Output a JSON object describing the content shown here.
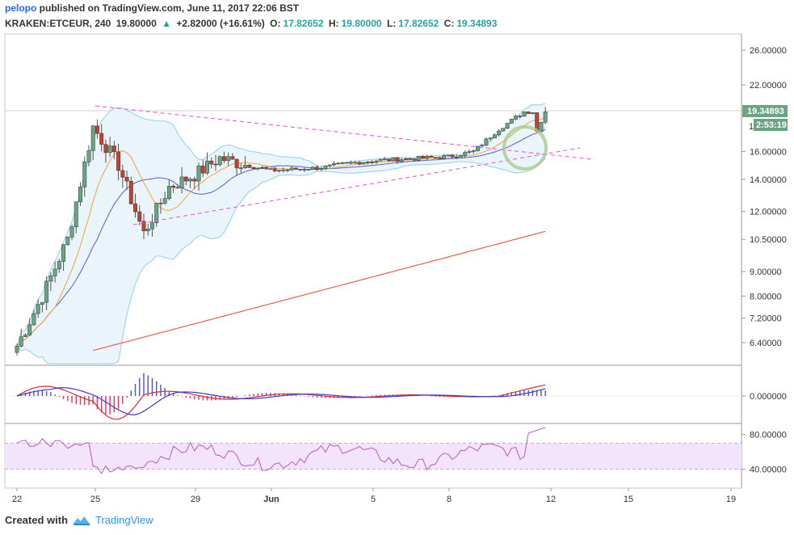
{
  "header": {
    "user": "pelopo",
    "published_text": "published on TradingView.com, June 11, 2017 22:06 BST",
    "symbol": "KRAKEN:ETCEUR, 240",
    "last": "19.80000",
    "change_arrow": "up-triangle-icon",
    "change": "+2.82000 (+16.61%)",
    "open_label": "O:",
    "open": "17.82652",
    "high_label": "H:",
    "high": "19.80000",
    "low_label": "L:",
    "low": "17.82652",
    "close_label": "C:",
    "close": "19.34893"
  },
  "price_badge": {
    "price": "19.34893",
    "countdown": "2:53:19",
    "partial_label": "1"
  },
  "footer": {
    "created_with": "Created with",
    "brand": "TradingView"
  },
  "colors": {
    "up_candle": "#6aa583",
    "down_candle": "#c4412c",
    "bollinger": "#8fd0ee",
    "bollinger_fill": "#e9f4fb",
    "ma_fast": "#f0a43a",
    "ma_mid": "#5b5bd6",
    "ma_slow": "#f25a4a",
    "trendline": "#e44ee0",
    "macd": "#e02c2c",
    "signal": "#3a3ad0",
    "rsi": "#b25fc4",
    "rsi_band": "#f3e3fb",
    "circle": "#a8cc8c"
  },
  "chart_data": [
    {
      "type": "candlestick",
      "title": "KRAKEN:ETCEUR, 240",
      "x_ticks": [
        "22",
        "25",
        "29",
        "Jun",
        "5",
        "8",
        "12",
        "15",
        "19"
      ],
      "y_ticks": [
        "26.00000",
        "22.00000",
        "16.00000",
        "14.00000",
        "12.00000",
        "10.50000",
        "9.00000",
        "8.00000",
        "7.20000",
        "6.40000"
      ],
      "y_scale": "log",
      "approx_close_path": [
        [
          "22",
          6.3
        ],
        [
          "23",
          8.0
        ],
        [
          "24",
          10.5
        ],
        [
          "25",
          18.0
        ],
        [
          "26",
          15.0
        ],
        [
          "27",
          10.8
        ],
        [
          "28",
          13.5
        ],
        [
          "29",
          14.3
        ],
        [
          "30",
          15.5
        ],
        [
          "Jun",
          15.0
        ],
        [
          "2",
          14.6
        ],
        [
          "3",
          14.7
        ],
        [
          "4",
          14.8
        ],
        [
          "5",
          15.1
        ],
        [
          "6",
          15.3
        ],
        [
          "7",
          15.4
        ],
        [
          "8",
          15.5
        ],
        [
          "9",
          15.6
        ],
        [
          "10",
          16.0
        ],
        [
          "11",
          17.8
        ],
        [
          "12",
          19.35
        ]
      ],
      "indicators": [
        "Bollinger Bands",
        "MA fast",
        "MA mid",
        "MA slow"
      ],
      "annotations": [
        "converging trendlines (triangle)",
        "breakout circle"
      ]
    },
    {
      "type": "line",
      "title": "MACD",
      "y_ticks": [
        "0.000000"
      ]
    },
    {
      "type": "line",
      "title": "RSI",
      "y_ticks": [
        "80.00000",
        "40.00000"
      ],
      "band": [
        40,
        70
      ]
    }
  ]
}
